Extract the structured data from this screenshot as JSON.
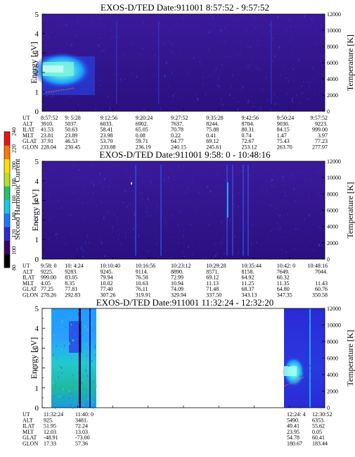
{
  "chart_data": {
    "type": "heatmap",
    "colorbar": {
      "label": "Second Harmonic Current",
      "ticks": [
        "80",
        "100",
        "120",
        "140",
        "160",
        "180",
        "200",
        "220",
        "240"
      ],
      "colors": [
        "#000000",
        "#3d0066",
        "#2a2ad6",
        "#1a78ff",
        "#18c8e8",
        "#22c36a",
        "#b8e020",
        "#ffe000",
        "#ff7a00",
        "#ee1111"
      ]
    },
    "panels": [
      {
        "title": "EXOS-D/TED   Date:911001  8:57:52 - 9:57:52",
        "ylabel": "Energy [eV]",
        "ylabel2": "Temperature [K]",
        "yticks": [
          "0",
          "1",
          "2",
          "3",
          "4",
          "5"
        ],
        "y2ticks": [
          "0",
          "2000",
          "4000",
          "6000",
          "8000",
          "10000",
          "12000"
        ],
        "row_labels": [
          "UT",
          "ALT",
          "ILAT",
          "MLT",
          "GLAT",
          "GLON"
        ],
        "columns": [
          [
            "8:57:52",
            "3910.",
            "41.53",
            "23.81",
            "37.91",
            "228.04"
          ],
          [
            "9: 5:28",
            "5037.",
            "50.63",
            "23.89",
            "46.53",
            "230.45"
          ],
          [
            "9:12:56",
            "6033.",
            "58.41",
            "23.98",
            "53.70",
            "233.08"
          ],
          [
            "9:20:24",
            "6902.",
            "65.05",
            "0.08",
            "59.71",
            "236.19"
          ],
          [
            "9:27:52",
            "7637.",
            "70.78",
            "0.22",
            "64.77",
            "240.15"
          ],
          [
            "9:35:28",
            "8244.",
            "75.88",
            "0.41",
            "69.12",
            "245.61"
          ],
          [
            "9:42:56",
            "8704.",
            "80.31",
            "0.74",
            "72.67",
            "253.12"
          ],
          [
            "9:50:24",
            "9030.",
            "84.15",
            "1.47",
            "75.43",
            "263.70"
          ],
          [
            "9:57:52",
            "9223.",
            "999.00",
            "3.97",
            "77.23",
            "277.97"
          ]
        ]
      },
      {
        "title": "EXOS-D/TED   Date:911001  9:58: 0 - 10:48:16",
        "ylabel": "Energy [eV]",
        "ylabel2": "Temperature [K]",
        "yticks": [
          "0",
          "1",
          "2",
          "3",
          "4",
          "5"
        ],
        "y2ticks": [
          "0",
          "2000",
          "4000",
          "6000",
          "8000",
          "10000",
          "12000"
        ],
        "row_labels": [
          "UT",
          "ALT",
          "ILAT",
          "MLT",
          "GLAT",
          "GLON"
        ],
        "columns": [
          [
            "9:58: 0",
            "9225.",
            "999.00",
            "4.05",
            "77.25",
            "278.26"
          ],
          [
            "10: 4:24",
            "9283.",
            "83.05",
            "8.35",
            "77.81",
            "292.83"
          ],
          [
            "10:10:40",
            "9245.",
            "79.94",
            "10.02",
            "77.40",
            "307.26"
          ],
          [
            "10:16:56",
            "9114.",
            "76.58",
            "10.63",
            "76.11",
            "319.91"
          ],
          [
            "10:23:12",
            "8890.",
            "72.99",
            "10.94",
            "74.09",
            "329.94"
          ],
          [
            "10:29:28",
            "8571.",
            "69.12",
            "11.13",
            "71.48",
            "337.50"
          ],
          [
            "10:35:44",
            "8158.",
            "64.92",
            "11.25",
            "68.37",
            "343.13"
          ],
          [
            "10:42: 0",
            "7649.",
            "60.32",
            "11.35",
            "64.80",
            "347.35"
          ],
          [
            "10:48:16",
            "7044.",
            "",
            "11.43",
            "60.76",
            "350.58"
          ]
        ]
      },
      {
        "title": "EXOS-D/TED   Date:911001  11:32:24 - 12:32:20",
        "ylabel": "Energy [eV]",
        "ylabel2": "Temperature [K]",
        "yticks": [
          "0",
          "1",
          "2",
          "3",
          "4",
          "5"
        ],
        "y2ticks": [
          "0",
          "2000",
          "4000",
          "6000",
          "8000",
          "10000",
          "12000"
        ],
        "row_labels": [
          "UT",
          "ALT",
          "ILAT",
          "MLT",
          "GLAT",
          "GLON"
        ],
        "columns": [
          [
            "11:32:24",
            "925.",
            "51.95",
            "12.03",
            "-48.91",
            "17.33"
          ],
          [
            "11:40: 0",
            "3481.",
            "72.24",
            "13.03",
            "-73.00",
            "57.36"
          ],
          [
            "12:24: 4",
            "5490.",
            "49.41",
            "23.95",
            "54.78",
            "180.67"
          ],
          [
            "12:30:52",
            "6353.",
            "55.62",
            "0.05",
            "60.41",
            "183.44"
          ]
        ]
      }
    ]
  }
}
